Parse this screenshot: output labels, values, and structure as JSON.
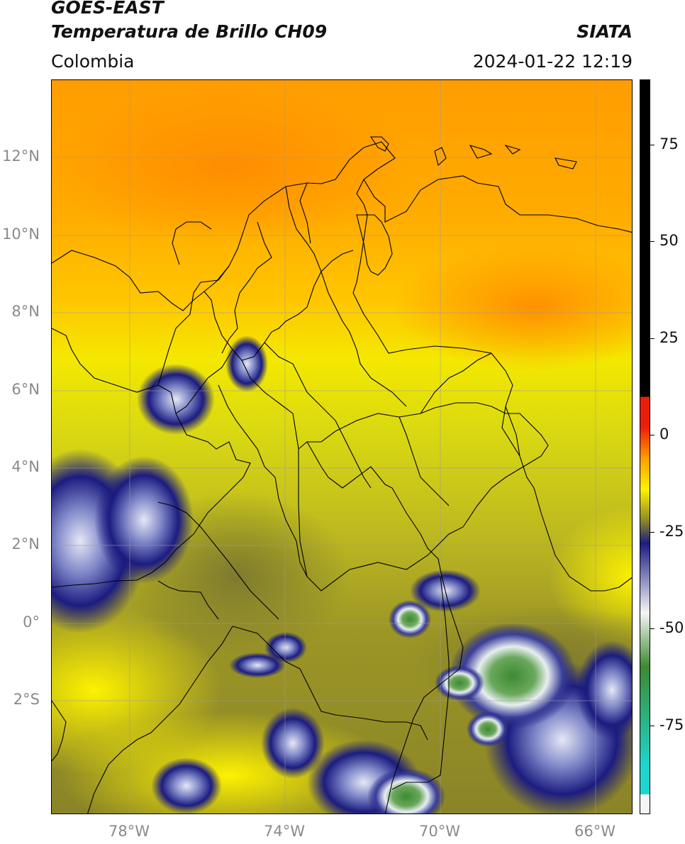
{
  "header": {
    "satellite": "GOES-EAST",
    "product": "Temperatura de Brillo CH09",
    "region": "Colombia",
    "organization": "SIATA",
    "datetime": "2024-01-22 12:19"
  },
  "map": {
    "lat_labels": [
      "12°N",
      "10°N",
      "8°N",
      "6°N",
      "4°N",
      "2°N",
      "0°",
      "2°S"
    ],
    "lon_labels": [
      "78°W",
      "74°W",
      "70°W",
      "66°W"
    ],
    "lat_range": [
      -4.9,
      14.0
    ],
    "lon_range": [
      -80.0,
      -65.0
    ]
  },
  "colorbar": {
    "ticks": [
      "75",
      "50",
      "25",
      "0",
      "-25",
      "-50",
      "-75"
    ],
    "tick_values": [
      75,
      50,
      25,
      0,
      -25,
      -50,
      -75
    ],
    "range": [
      -100,
      90
    ],
    "colors": {
      "black": "#000000",
      "red": "#e8200a",
      "orange": "#ff9d00",
      "yellow": "#fdf200",
      "olive": "#8f8a28",
      "navy": "#1c1c80",
      "white": "#f5f5f5",
      "green": "#3d8a32",
      "cyan": "#1ed6cf"
    }
  }
}
